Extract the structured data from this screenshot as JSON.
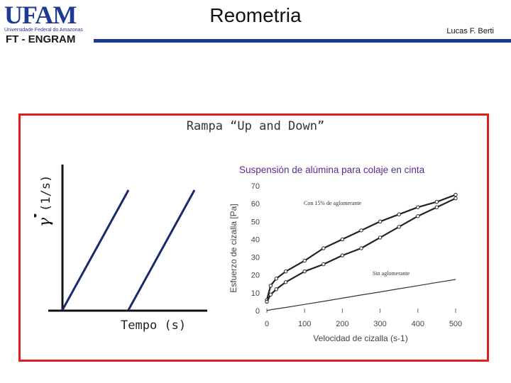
{
  "header": {
    "logo_text": "UFAM",
    "logo_subtitle": "Universidade Federal do Amazonas",
    "department": "FT - ENGRAM",
    "title": "Reometria",
    "author": "Lucas F. Berti"
  },
  "section": {
    "title": "Rampa “Up and Down”",
    "ramp_y_label": "(1/s)",
    "ramp_x_label": "Tempo (s)"
  },
  "chart_data": {
    "type": "line",
    "title": "Suspensión de alúmina para colaje en cinta",
    "xlabel": "Velocidad de cizalla (s-1)",
    "ylabel": "Esfuerzo de cizalla [Pa]",
    "xlim": [
      0,
      500
    ],
    "ylim": [
      0,
      70
    ],
    "x_ticks": [
      0,
      100,
      200,
      300,
      400,
      500
    ],
    "y_ticks": [
      0,
      10,
      20,
      30,
      40,
      50,
      60,
      70
    ],
    "x": [
      0,
      10,
      25,
      50,
      100,
      150,
      200,
      250,
      300,
      350,
      400,
      450,
      500
    ],
    "series": [
      {
        "name": "Con 15% de aglomerante",
        "values": [
          6,
          14,
          18,
          22,
          28,
          35,
          40,
          45,
          50,
          54,
          58,
          61,
          65
        ]
      },
      {
        "name": "Con 15% de aglomerante",
        "values": [
          5,
          9,
          12,
          16,
          22,
          26,
          31,
          35,
          41,
          47,
          53,
          58,
          63
        ]
      },
      {
        "name": "Sin aglomerante",
        "values": [
          0,
          0.5,
          1,
          1.8,
          3.5,
          5.2,
          7,
          8.8,
          10.5,
          12.3,
          14,
          15.8,
          17.5
        ]
      }
    ],
    "annotations": [
      "Con 15% de aglomerante",
      "Sin aglomerante"
    ]
  }
}
